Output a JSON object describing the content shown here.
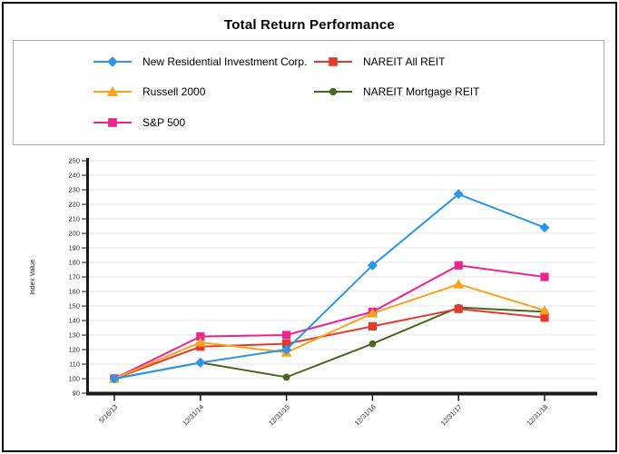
{
  "page": {
    "title": "Total Return Performance"
  },
  "chart_data": {
    "type": "line",
    "title": "Total Return Performance",
    "xlabel": "",
    "ylabel": "Index Value",
    "ylim": [
      90,
      250
    ],
    "yticks": [
      90,
      100,
      110,
      120,
      130,
      140,
      150,
      160,
      170,
      180,
      190,
      200,
      210,
      220,
      230,
      240,
      250
    ],
    "grid": true,
    "legend_position": "top",
    "categories": [
      "5/16/13",
      "12/31/14",
      "12/31/15",
      "12/31/16",
      "12/31/17",
      "12/31/18"
    ],
    "series": [
      {
        "name": "New Residential Investment Corp.",
        "color": "#2B95E9",
        "marker": "diamond",
        "values": [
          100,
          111,
          120,
          178,
          227,
          204
        ]
      },
      {
        "name": "NAREIT All REIT",
        "color": "#E23A2E",
        "marker": "square",
        "values": [
          100,
          122,
          124,
          136,
          148,
          142
        ]
      },
      {
        "name": "Russell 2000",
        "color": "#FAA21E",
        "marker": "triangle",
        "values": [
          100,
          125,
          118,
          145,
          165,
          147
        ]
      },
      {
        "name": "NAREIT Mortgage REIT",
        "color": "#4A671E",
        "marker": "circle",
        "values": [
          100,
          111,
          101,
          124,
          149,
          146
        ]
      },
      {
        "name": "S&P 500",
        "color": "#EC2490",
        "marker": "square",
        "values": [
          100,
          129,
          130,
          146,
          178,
          170
        ]
      }
    ],
    "draw_order": [
      3,
      1,
      4,
      2,
      0
    ],
    "axis_color": "#1a1a1a",
    "grid_color": "#e6e6e6",
    "tick_text_color": "#333333"
  }
}
